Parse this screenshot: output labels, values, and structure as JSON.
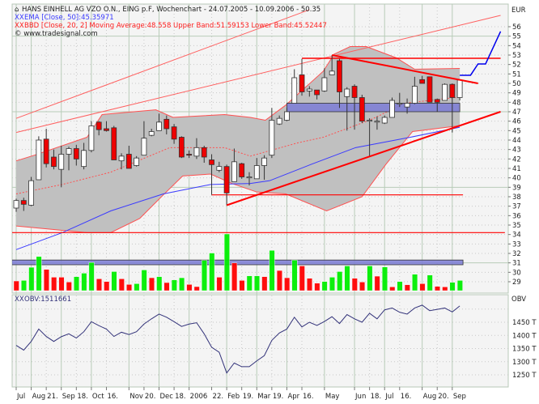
{
  "header": {
    "title": "HANS EINHELL AG VZO O.N., EING p.F, Wochenchart - 24.07.2005 - 10.09.2006 - 50.35",
    "ema_legend": "EMA [Close, 50]:45.35971",
    "bb_legend": "BBD [Close, 20, 2] Moving Average:48.558 Upper Band:51.59153 Lower Band:45.52447",
    "copyright": "© www.tradesignal.com",
    "obv_legend": "OBV:1511661",
    "indicator_icon": "xx-indicator-icon",
    "symbol_icon": "instrument-icon"
  },
  "colors": {
    "up_candle": "#ffffff",
    "down_candle": "#ee0000",
    "volume_up": "#00ee00",
    "volume_down": "#ff0000",
    "band_fill": "#c0c0c0",
    "band_line": "#ff5050",
    "ema": "#3a3aff",
    "obv": "#33337a",
    "drawing_red": "#ff0000",
    "zone_blue": "#7b7bd6",
    "projection": "#0000ee"
  },
  "chart_data": [
    {
      "type": "candlestick",
      "title": "HANS EINHELL AG VZO O.N., EING p.F, Wochenchart - 24.07.2005 - 10.09.2006 - 50.35",
      "ylabel": "EUR",
      "ylim": [
        27.8,
        58.4
      ],
      "y_ticks": [
        56,
        55,
        54,
        53,
        52,
        51,
        50,
        49,
        48,
        47,
        46,
        45,
        44,
        43,
        42,
        41,
        40,
        39,
        38,
        37,
        36,
        35,
        34,
        33,
        32,
        31,
        30,
        29
      ],
      "x_ticks": [
        {
          "label": "Jul",
          "date": "2005-07-24",
          "major": true
        },
        {
          "label": "Aug",
          "date": "2005-08-07",
          "major": true
        },
        {
          "label": "21.",
          "date": "2005-08-21",
          "major": false
        },
        {
          "label": "Sep",
          "date": "2005-09-04",
          "major": true
        },
        {
          "label": "18.",
          "date": "2005-09-18",
          "major": false
        },
        {
          "label": "Oct",
          "date": "2005-10-02",
          "major": true
        },
        {
          "label": "16.",
          "date": "2005-10-16",
          "major": false
        },
        {
          "label": "Nov",
          "date": "2005-11-06",
          "major": true
        },
        {
          "label": "20.",
          "date": "2005-11-20",
          "major": false
        },
        {
          "label": "Dec",
          "date": "2005-12-04",
          "major": true
        },
        {
          "label": "18.",
          "date": "2005-12-18",
          "major": false
        },
        {
          "label": "2006",
          "date": "2006-01-01",
          "major": true
        },
        {
          "label": "22.",
          "date": "2006-01-22",
          "major": false
        },
        {
          "label": "Feb",
          "date": "2006-02-05",
          "major": true
        },
        {
          "label": "19.",
          "date": "2006-02-19",
          "major": false
        },
        {
          "label": "Mar",
          "date": "2006-03-05",
          "major": true
        },
        {
          "label": "19.",
          "date": "2006-03-19",
          "major": false
        },
        {
          "label": "Apr",
          "date": "2006-04-02",
          "major": true
        },
        {
          "label": "16.",
          "date": "2006-04-16",
          "major": false
        },
        {
          "label": "May",
          "date": "2006-05-07",
          "major": true
        },
        {
          "label": "Jun",
          "date": "2006-06-04",
          "major": true
        },
        {
          "label": "18.",
          "date": "2006-06-18",
          "major": false
        },
        {
          "label": "Jul",
          "date": "2006-07-02",
          "major": true
        },
        {
          "label": "16.",
          "date": "2006-07-16",
          "major": false
        },
        {
          "label": "Aug",
          "date": "2006-08-06",
          "major": true
        },
        {
          "label": "20.",
          "date": "2006-08-20",
          "major": false
        },
        {
          "label": "Sep",
          "date": "2006-09-03",
          "major": true
        }
      ],
      "grid": true,
      "x": [
        "2005-07-24",
        "2005-07-31",
        "2005-08-07",
        "2005-08-14",
        "2005-08-21",
        "2005-08-28",
        "2005-09-04",
        "2005-09-11",
        "2005-09-18",
        "2005-09-25",
        "2005-10-02",
        "2005-10-09",
        "2005-10-16",
        "2005-10-23",
        "2005-10-30",
        "2005-11-06",
        "2005-11-13",
        "2005-11-20",
        "2005-11-27",
        "2005-12-04",
        "2005-12-11",
        "2005-12-18",
        "2005-12-25",
        "2006-01-01",
        "2006-01-08",
        "2006-01-15",
        "2006-01-22",
        "2006-01-29",
        "2006-02-05",
        "2006-02-12",
        "2006-02-19",
        "2006-02-26",
        "2006-03-05",
        "2006-03-12",
        "2006-03-19",
        "2006-03-26",
        "2006-04-02",
        "2006-04-09",
        "2006-04-16",
        "2006-04-23",
        "2006-04-30",
        "2006-05-07",
        "2006-05-14",
        "2006-05-21",
        "2006-05-28",
        "2006-06-04",
        "2006-06-11",
        "2006-06-18",
        "2006-06-25",
        "2006-07-02",
        "2006-07-09",
        "2006-07-16",
        "2006-07-23",
        "2006-07-30",
        "2006-08-06",
        "2006-08-13",
        "2006-08-20",
        "2006-08-27",
        "2006-09-03",
        "2006-09-10"
      ],
      "ohlc": [
        [
          36.8,
          37.8,
          36.4,
          37.6
        ],
        [
          37.6,
          37.9,
          36.5,
          37.2
        ],
        [
          37.1,
          40.1,
          37.0,
          39.7
        ],
        [
          39.8,
          44.4,
          39.8,
          44.0
        ],
        [
          44.1,
          45.2,
          41.1,
          41.5
        ],
        [
          42.2,
          43.0,
          40.9,
          41.2
        ],
        [
          40.9,
          43.4,
          39.0,
          42.5
        ],
        [
          42.5,
          43.3,
          40.8,
          43.1
        ],
        [
          43.1,
          43.5,
          41.3,
          42.0
        ],
        [
          41.2,
          43.7,
          40.9,
          42.9
        ],
        [
          42.9,
          46.0,
          42.7,
          45.5
        ],
        [
          45.9,
          46.0,
          44.5,
          45.1
        ],
        [
          45.2,
          46.0,
          44.9,
          45.0
        ],
        [
          45.3,
          45.5,
          41.9,
          41.9
        ],
        [
          41.8,
          42.6,
          40.9,
          42.3
        ],
        [
          42.5,
          43.4,
          41.0,
          41.0
        ],
        [
          41.3,
          42.3,
          41.2,
          42.1
        ],
        [
          42.4,
          46.0,
          42.4,
          44.2
        ],
        [
          44.5,
          45.2,
          44.4,
          44.9
        ],
        [
          45.0,
          46.8,
          45.0,
          45.9
        ],
        [
          46.2,
          46.6,
          44.6,
          45.2
        ],
        [
          45.4,
          45.7,
          43.6,
          44.1
        ],
        [
          44.3,
          44.4,
          42.1,
          42.2
        ],
        [
          42.5,
          42.9,
          42.1,
          42.4
        ],
        [
          42.3,
          44.2,
          42.0,
          43.2
        ],
        [
          43.2,
          43.4,
          41.6,
          42.2
        ],
        [
          41.9,
          42.5,
          38.2,
          41.4
        ],
        [
          40.8,
          41.7,
          40.6,
          41.2
        ],
        [
          41.2,
          41.4,
          37.1,
          38.4
        ],
        [
          39.6,
          43.1,
          39.6,
          41.7
        ],
        [
          41.5,
          41.6,
          39.9,
          40.1
        ],
        [
          40.0,
          40.6,
          39.2,
          40.1
        ],
        [
          39.9,
          42.1,
          39.9,
          41.3
        ],
        [
          41.3,
          42.4,
          39.8,
          42.1
        ],
        [
          42.4,
          47.4,
          42.1,
          46.1
        ],
        [
          45.7,
          46.6,
          45.6,
          46.3
        ],
        [
          46.1,
          47.4,
          46.0,
          47.0
        ],
        [
          47.9,
          51.5,
          47.9,
          50.6
        ],
        [
          50.9,
          52.6,
          48.7,
          49.1
        ],
        [
          49.2,
          49.7,
          48.6,
          49.4
        ],
        [
          49.3,
          49.3,
          48.3,
          48.8
        ],
        [
          49.2,
          51.6,
          49.1,
          50.6
        ],
        [
          50.9,
          53.0,
          50.9,
          51.3
        ],
        [
          52.4,
          52.6,
          47.4,
          49.1
        ],
        [
          48.6,
          49.6,
          45.0,
          49.4
        ],
        [
          49.7,
          49.9,
          45.1,
          48.5
        ],
        [
          48.5,
          48.8,
          45.8,
          46.0
        ],
        [
          46.0,
          46.3,
          42.3,
          46.1
        ],
        [
          45.9,
          46.5,
          45.1,
          46.0
        ],
        [
          45.8,
          46.6,
          45.7,
          46.4
        ],
        [
          46.4,
          48.5,
          46.4,
          48.2
        ],
        [
          47.8,
          49.0,
          47.5,
          47.9
        ],
        [
          47.5,
          48.4,
          46.8,
          47.9
        ],
        [
          47.9,
          50.7,
          47.8,
          49.7
        ],
        [
          50.4,
          50.8,
          50.0,
          50.0
        ],
        [
          50.7,
          50.7,
          48.0,
          48.0
        ],
        [
          48.3,
          48.4,
          47.0,
          48.0
        ],
        [
          48.2,
          50.0,
          48.2,
          49.9
        ],
        [
          49.9,
          50.0,
          44.8,
          48.5
        ],
        [
          48.5,
          50.4,
          48.2,
          50.35
        ]
      ],
      "volume_relative": [
        36,
        38,
        87,
        127,
        79,
        50,
        50,
        32,
        52,
        65,
        105,
        44,
        34,
        71,
        44,
        23,
        26,
        77,
        48,
        52,
        30,
        40,
        48,
        23,
        15,
        113,
        140,
        50,
        211,
        103,
        38,
        55,
        55,
        52,
        150,
        75,
        48,
        114,
        92,
        46,
        28,
        34,
        50,
        71,
        92,
        46,
        32,
        92,
        54,
        88,
        14,
        34,
        22,
        61,
        26,
        58,
        16,
        14,
        31,
        38
      ],
      "volume_direction": [
        "down",
        "up",
        "up",
        "up",
        "down",
        "down",
        "down",
        "down",
        "up",
        "up",
        "up",
        "down",
        "down",
        "up",
        "down",
        "down",
        "up",
        "up",
        "down",
        "up",
        "down",
        "up",
        "up",
        "down",
        "down",
        "up",
        "up",
        "down",
        "up",
        "down",
        "down",
        "up",
        "up",
        "down",
        "up",
        "down",
        "down",
        "up",
        "down",
        "down",
        "down",
        "up",
        "up",
        "up",
        "up",
        "down",
        "down",
        "up",
        "down",
        "up",
        "down",
        "up",
        "down",
        "up",
        "down",
        "up",
        "down",
        "down",
        "up",
        "up"
      ],
      "overlays": {
        "bb_upper": [
          [
            "2005-07-24",
            41.8
          ],
          [
            "2005-08-10",
            42.4
          ],
          [
            "2005-09-28",
            44.3
          ],
          [
            "2005-10-12",
            46.7
          ],
          [
            "2005-12-01",
            47.2
          ],
          [
            "2005-12-17",
            46.4
          ],
          [
            "2006-02-03",
            46.7
          ],
          [
            "2006-02-27",
            46.4
          ],
          [
            "2006-03-13",
            46.1
          ],
          [
            "2006-04-01",
            47.7
          ],
          [
            "2006-05-06",
            51.3
          ],
          [
            "2006-05-16",
            53.1
          ],
          [
            "2006-05-31",
            53.9
          ],
          [
            "2006-06-15",
            53.9
          ],
          [
            "2006-07-13",
            52.7
          ],
          [
            "2006-07-30",
            51.5
          ],
          [
            "2006-09-10",
            51.59
          ]
        ],
        "bb_lower": [
          [
            "2005-07-24",
            34.9
          ],
          [
            "2005-09-28",
            34.2
          ],
          [
            "2005-10-20",
            34.2
          ],
          [
            "2005-11-16",
            35.7
          ],
          [
            "2005-12-08",
            38.2
          ],
          [
            "2005-12-26",
            40.2
          ],
          [
            "2006-01-21",
            40.4
          ],
          [
            "2006-02-10",
            39.4
          ],
          [
            "2006-03-05",
            38.5
          ],
          [
            "2006-04-01",
            38.3
          ],
          [
            "2006-05-09",
            36.5
          ],
          [
            "2006-06-11",
            38.0
          ],
          [
            "2006-07-03",
            41.4
          ],
          [
            "2006-07-28",
            44.9
          ],
          [
            "2006-09-10",
            45.52
          ]
        ],
        "bb_middle": [
          [
            "2005-07-24",
            38.3
          ],
          [
            "2005-09-05",
            39.3
          ],
          [
            "2005-10-20",
            40.6
          ],
          [
            "2005-12-14",
            43.2
          ],
          [
            "2006-02-03",
            43.2
          ],
          [
            "2006-02-27",
            42.3
          ],
          [
            "2006-04-12",
            43.7
          ],
          [
            "2006-05-06",
            44.3
          ],
          [
            "2006-06-18",
            46.1
          ],
          [
            "2006-07-21",
            47.9
          ],
          [
            "2006-09-10",
            48.56
          ]
        ],
        "ema50": [
          [
            "2005-07-24",
            32.4
          ],
          [
            "2005-09-05",
            34.2
          ],
          [
            "2005-10-20",
            36.5
          ],
          [
            "2005-12-08",
            38.3
          ],
          [
            "2006-01-21",
            39.3
          ],
          [
            "2006-02-27",
            39.4
          ],
          [
            "2006-03-17",
            39.7
          ],
          [
            "2006-04-24",
            41.4
          ],
          [
            "2006-06-05",
            43.2
          ],
          [
            "2006-07-26",
            44.3
          ],
          [
            "2006-09-10",
            45.36
          ]
        ]
      },
      "drawings": {
        "channel_upper": [
          [
            "2005-07-24",
            46.3
          ],
          [
            "2006-04-23",
            57.8
          ]
        ],
        "channel_lower": [
          [
            "2005-07-24",
            44.8
          ],
          [
            "2006-10-18",
            57.2
          ]
        ],
        "support_trend": [
          [
            "2006-02-05",
            37.1
          ],
          [
            "2006-10-18",
            47.0
          ]
        ],
        "resistance_trend": [
          [
            "2006-05-14",
            53.0
          ],
          [
            "2006-09-27",
            50.0
          ]
        ],
        "hline_high": {
          "price": 52.66,
          "from": "2006-04-16",
          "to": "2006-10-18"
        },
        "hline_low": {
          "price": 38.2,
          "from": "2006-01-22",
          "to": "2006-09-13"
        },
        "hline_base": {
          "price": 34.2,
          "from": "2005-07-20",
          "to": "2006-10-22"
        },
        "zone_upper": {
          "from": "2006-04-02",
          "to": "2006-09-10",
          "low": 47.0,
          "high": 47.9
        },
        "zone_lower": {
          "from": "2005-07-20",
          "to": "2006-09-13",
          "low": 30.8,
          "high": 31.3
        },
        "projection": [
          [
            "2006-09-10",
            50.86
          ],
          [
            "2006-09-20",
            50.86
          ],
          [
            "2006-09-27",
            52.06
          ],
          [
            "2006-10-04",
            52.06
          ],
          [
            "2006-10-18",
            55.5
          ]
        ]
      }
    },
    {
      "type": "line",
      "name": "OBV",
      "ylabel": "OBV",
      "unit": "T",
      "y_ticks": [
        "1450 T",
        "1400 T",
        "1350 T",
        "1300 T",
        "1250 T"
      ],
      "values_thousands": [
        1362,
        1344,
        1377,
        1424,
        1396,
        1377,
        1395,
        1406,
        1390,
        1414,
        1452,
        1437,
        1424,
        1396,
        1412,
        1403,
        1414,
        1443,
        1463,
        1481,
        1469,
        1452,
        1434,
        1443,
        1448,
        1406,
        1355,
        1336,
        1257,
        1295,
        1281,
        1281,
        1303,
        1323,
        1381,
        1409,
        1424,
        1469,
        1432,
        1450,
        1438,
        1453,
        1471,
        1445,
        1479,
        1463,
        1450,
        1484,
        1463,
        1497,
        1504,
        1488,
        1481,
        1504,
        1515,
        1494,
        1499,
        1504,
        1489,
        1512
      ]
    }
  ]
}
